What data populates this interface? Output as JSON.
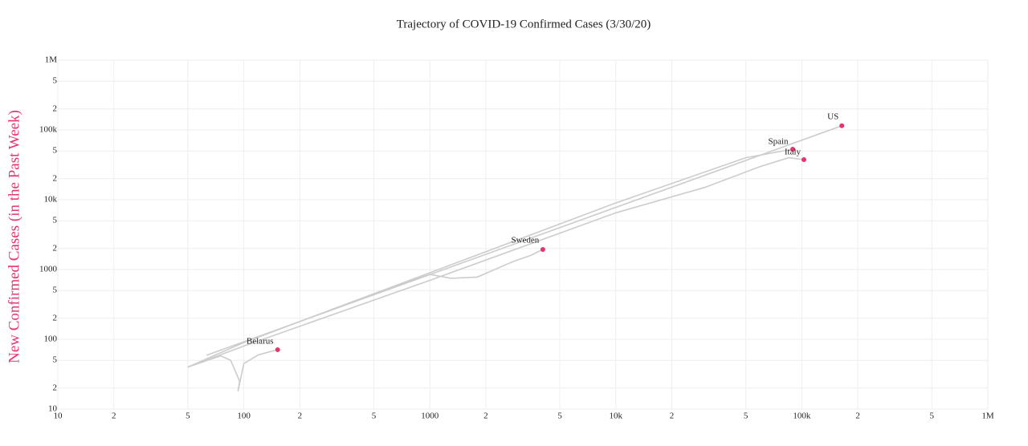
{
  "chart_data": {
    "type": "line",
    "title": "Trajectory of COVID-19 Confirmed Cases (3/30/20)",
    "y_label": "New Confirmed Cases (in the Past Week)",
    "log_x": true,
    "log_y": true,
    "grid": true,
    "marker_color": "#e8336b",
    "xlim": [
      10,
      1000000
    ],
    "ylim": [
      10,
      1000000
    ],
    "xticks": [
      10,
      {
        "value": 20,
        "label": "2"
      },
      {
        "value": 50,
        "label": "5"
      },
      100,
      {
        "value": 200,
        "label": "2"
      },
      {
        "value": 500,
        "label": "5"
      },
      1000,
      {
        "value": 2000,
        "label": "2"
      },
      {
        "value": 5000,
        "label": "5"
      },
      {
        "value": 10000,
        "label": "10k"
      },
      {
        "value": 20000,
        "label": "2"
      },
      {
        "value": 50000,
        "label": "5"
      },
      {
        "value": 100000,
        "label": "100k"
      },
      {
        "value": 200000,
        "label": "2"
      },
      {
        "value": 500000,
        "label": "5"
      },
      {
        "value": 1000000,
        "label": "1M"
      }
    ],
    "yticks": [
      10,
      {
        "value": 20,
        "label": "2"
      },
      {
        "value": 50,
        "label": "5"
      },
      100,
      {
        "value": 200,
        "label": "2"
      },
      {
        "value": 500,
        "label": "5"
      },
      1000,
      {
        "value": 2000,
        "label": "2"
      },
      {
        "value": 5000,
        "label": "5"
      },
      {
        "value": 10000,
        "label": "10k"
      },
      {
        "value": 20000,
        "label": "2"
      },
      {
        "value": 50000,
        "label": "5"
      },
      {
        "value": 100000,
        "label": "100k"
      },
      {
        "value": 200000,
        "label": "2"
      },
      {
        "value": 500000,
        "label": "5"
      },
      {
        "value": 1000000,
        "label": "1M"
      }
    ],
    "series": [
      {
        "name": "US",
        "color": "#cccccc",
        "x": [
          63,
          500,
          5000,
          50000,
          164000
        ],
        "values": [
          59,
          434,
          3990,
          36600,
          115000
        ]
      },
      {
        "name": "Spain",
        "color": "#cccccc",
        "x": [
          100,
          1000,
          10000,
          50000,
          89300
        ],
        "values": [
          90,
          900,
          9000,
          40000,
          53000
        ]
      },
      {
        "name": "Italy",
        "color": "#cccccc",
        "x": [
          50,
          100,
          1000,
          10000,
          30000,
          60000,
          85000,
          102600
        ],
        "values": [
          40,
          80,
          700,
          6500,
          15000,
          30000,
          40000,
          37600
        ]
      },
      {
        "name": "Sweden",
        "color": "#cccccc",
        "x": [
          50,
          100,
          500,
          1000,
          1300,
          1800,
          2800,
          3500,
          4050
        ],
        "values": [
          40,
          90,
          450,
          850,
          750,
          780,
          1300,
          1600,
          1940
        ]
      },
      {
        "name": "Belarus",
        "color": "#cccccc",
        "x": [
          50,
          75,
          85,
          95,
          93,
          100,
          120,
          152
        ],
        "values": [
          40,
          58,
          50,
          25,
          18,
          45,
          60,
          71
        ]
      }
    ]
  }
}
